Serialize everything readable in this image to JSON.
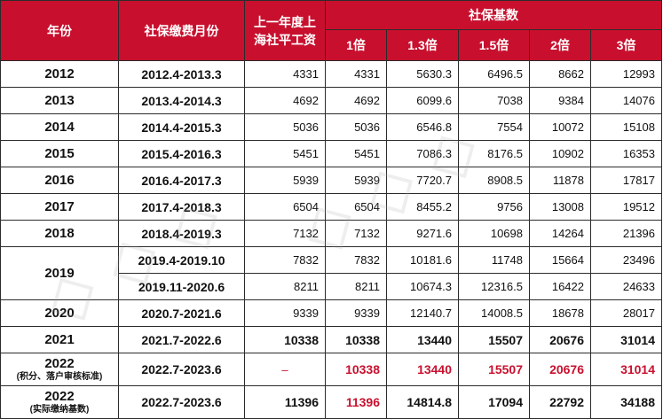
{
  "header": {
    "year": "年份",
    "period": "社保缴费月份",
    "avg_salary_line1": "上一年度上",
    "avg_salary_line2": "海社平工资",
    "base_group": "社保基数",
    "multipliers": [
      "1倍",
      "1.3倍",
      "1.5倍",
      "2倍",
      "3倍"
    ]
  },
  "rows": [
    {
      "year": "2012",
      "period": "2012.4-2013.3",
      "avg": "4331",
      "v": [
        "4331",
        "5630.3",
        "6496.5",
        "8662",
        "12993"
      ]
    },
    {
      "year": "2013",
      "period": "2013.4-2014.3",
      "avg": "4692",
      "v": [
        "4692",
        "6099.6",
        "7038",
        "9384",
        "14076"
      ]
    },
    {
      "year": "2014",
      "period": "2014.4-2015.3",
      "avg": "5036",
      "v": [
        "5036",
        "6546.8",
        "7554",
        "10072",
        "15108"
      ]
    },
    {
      "year": "2015",
      "period": "2015.4-2016.3",
      "avg": "5451",
      "v": [
        "5451",
        "7086.3",
        "8176.5",
        "10902",
        "16353"
      ]
    },
    {
      "year": "2016",
      "period": "2016.4-2017.3",
      "avg": "5939",
      "v": [
        "5939",
        "7720.7",
        "8908.5",
        "11878",
        "17817"
      ]
    },
    {
      "year": "2017",
      "period": "2017.4-2018.3",
      "avg": "6504",
      "v": [
        "6504",
        "8455.2",
        "9756",
        "13008",
        "19512"
      ]
    },
    {
      "year": "2018",
      "period": "2018.4-2019.3",
      "avg": "7132",
      "v": [
        "7132",
        "9271.6",
        "10698",
        "14264",
        "21396"
      ]
    }
  ],
  "row2019": {
    "year": "2019",
    "a": {
      "period": "2019.4-2019.10",
      "avg": "7832",
      "v": [
        "7832",
        "10181.6",
        "11748",
        "15664",
        "23496"
      ]
    },
    "b": {
      "period": "2019.11-2020.6",
      "avg": "8211",
      "v": [
        "8211",
        "10674.3",
        "12316.5",
        "16422",
        "24633"
      ]
    }
  },
  "row2020": {
    "year": "2020",
    "period": "2020.7-2021.6",
    "avg": "9339",
    "v": [
      "9339",
      "12140.7",
      "14008.5",
      "18678",
      "28017"
    ]
  },
  "row2021": {
    "year": "2021",
    "period": "2021.7-2022.6",
    "avg": "10338",
    "v": [
      "10338",
      "13440",
      "15507",
      "20676",
      "31014"
    ]
  },
  "row2022a": {
    "year": "2022",
    "note": "(积分、落户审核标准)",
    "period": "2022.7-2023.6",
    "avg": "–",
    "v": [
      "10338",
      "13440",
      "15507",
      "20676",
      "31014"
    ]
  },
  "row2022b": {
    "year": "2022",
    "note": "(实际缴纳基数)",
    "period": "2022.7-2023.6",
    "avg": "11396",
    "v": [
      "11396",
      "14814.8",
      "17094",
      "22792",
      "34188"
    ]
  },
  "colors": {
    "header_bg": "#c8102e",
    "highlight": "#c8102e"
  }
}
